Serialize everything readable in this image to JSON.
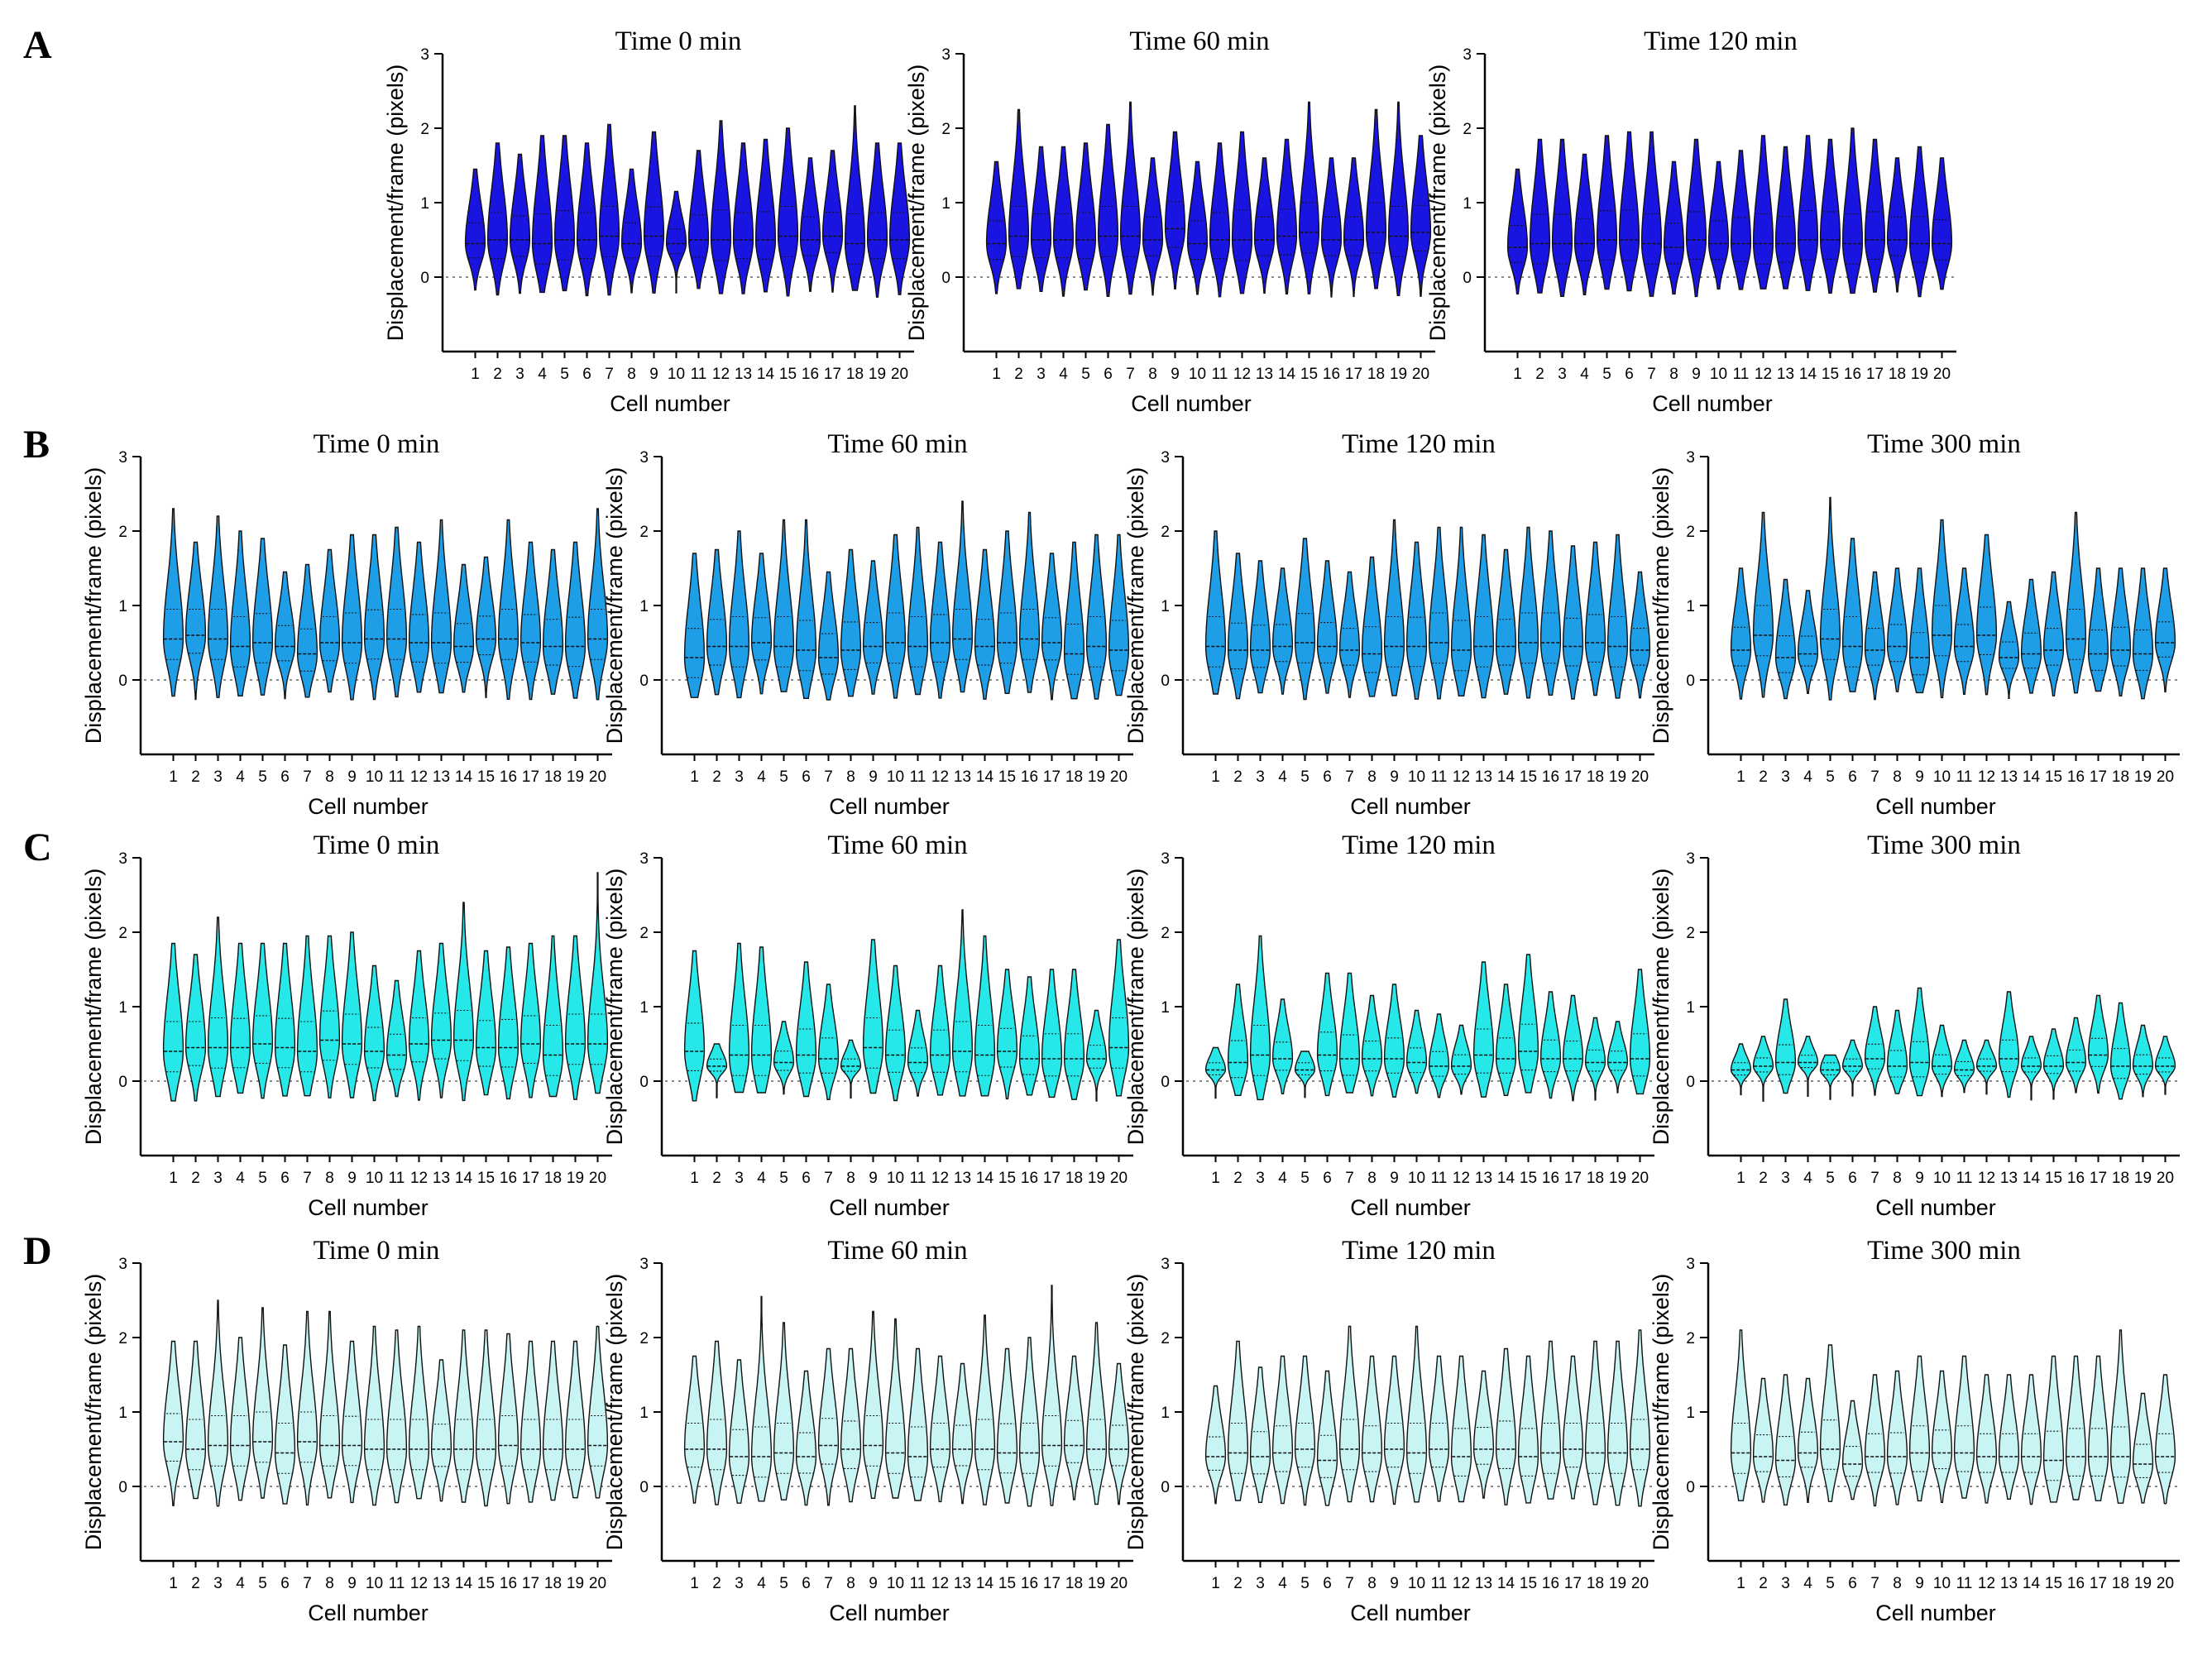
{
  "figure": {
    "rows": [
      {
        "letter": "A",
        "fill": "#1a14e0"
      },
      {
        "letter": "B",
        "fill": "#1f9ee8"
      },
      {
        "letter": "C",
        "fill": "#26e8e8"
      },
      {
        "letter": "D",
        "fill": "#c8f4f4"
      }
    ]
  },
  "chart_data": [
    {
      "id": "A1",
      "type": "violin",
      "row": "A",
      "title": "Time 0 min",
      "xlabel": "Cell number",
      "ylabel": "Displacement/frame (pixels)",
      "ylim": [
        -1,
        3
      ],
      "yticks": [
        0,
        1,
        2,
        3
      ],
      "categories": [
        "1",
        "2",
        "3",
        "4",
        "5",
        "6",
        "7",
        "8",
        "9",
        "10",
        "11",
        "12",
        "13",
        "14",
        "15",
        "16",
        "17",
        "18",
        "19",
        "20"
      ],
      "medians": [
        0.45,
        0.5,
        0.5,
        0.45,
        0.5,
        0.5,
        0.55,
        0.45,
        0.55,
        0.45,
        0.5,
        0.5,
        0.5,
        0.5,
        0.55,
        0.5,
        0.55,
        0.45,
        0.5,
        0.5
      ],
      "maxima": [
        1.45,
        1.8,
        1.65,
        1.9,
        1.9,
        1.8,
        2.05,
        1.45,
        1.95,
        1.15,
        1.7,
        2.1,
        1.8,
        1.85,
        2.0,
        1.6,
        1.7,
        2.3,
        1.8,
        1.8
      ]
    },
    {
      "id": "A2",
      "type": "violin",
      "row": "A",
      "title": "Time 60 min",
      "xlabel": "Cell number",
      "ylabel": "Displacement/frame (pixels)",
      "ylim": [
        -1,
        3
      ],
      "yticks": [
        0,
        1,
        2,
        3
      ],
      "categories": [
        "1",
        "2",
        "3",
        "4",
        "5",
        "6",
        "7",
        "8",
        "9",
        "10",
        "11",
        "12",
        "13",
        "14",
        "15",
        "16",
        "17",
        "18",
        "19",
        "20"
      ],
      "medians": [
        0.45,
        0.55,
        0.5,
        0.5,
        0.5,
        0.55,
        0.55,
        0.5,
        0.65,
        0.45,
        0.5,
        0.5,
        0.5,
        0.55,
        0.6,
        0.5,
        0.5,
        0.6,
        0.55,
        0.6
      ],
      "maxima": [
        1.55,
        2.25,
        1.75,
        1.75,
        1.8,
        2.05,
        2.35,
        1.6,
        1.95,
        1.55,
        1.8,
        1.95,
        1.6,
        1.85,
        2.35,
        1.6,
        1.6,
        2.25,
        2.35,
        1.9
      ]
    },
    {
      "id": "A3",
      "type": "violin",
      "row": "A",
      "title": "Time 120 min",
      "xlabel": "Cell number",
      "ylabel": "Displacement/frame (pixels)",
      "ylim": [
        -1,
        3
      ],
      "yticks": [
        0,
        1,
        2,
        3
      ],
      "categories": [
        "1",
        "2",
        "3",
        "4",
        "5",
        "6",
        "7",
        "8",
        "9",
        "10",
        "11",
        "12",
        "13",
        "14",
        "15",
        "16",
        "17",
        "18",
        "19",
        "20"
      ],
      "medians": [
        0.4,
        0.45,
        0.45,
        0.45,
        0.5,
        0.5,
        0.45,
        0.4,
        0.5,
        0.45,
        0.45,
        0.45,
        0.45,
        0.5,
        0.5,
        0.45,
        0.5,
        0.5,
        0.45,
        0.45
      ],
      "maxima": [
        1.45,
        1.85,
        1.85,
        1.65,
        1.9,
        1.95,
        1.95,
        1.55,
        1.85,
        1.55,
        1.7,
        1.9,
        1.75,
        1.9,
        1.85,
        2.0,
        1.85,
        1.6,
        1.75,
        1.6
      ]
    },
    {
      "id": "B1",
      "type": "violin",
      "row": "B",
      "title": "Time 0 min",
      "xlabel": "Cell number",
      "ylabel": "Displacement/frame (pixels)",
      "ylim": [
        -1,
        3
      ],
      "yticks": [
        0,
        1,
        2,
        3
      ],
      "categories": [
        "1",
        "2",
        "3",
        "4",
        "5",
        "6",
        "7",
        "8",
        "9",
        "10",
        "11",
        "12",
        "13",
        "14",
        "15",
        "16",
        "17",
        "18",
        "19",
        "20"
      ],
      "medians": [
        0.55,
        0.6,
        0.55,
        0.45,
        0.5,
        0.45,
        0.35,
        0.5,
        0.5,
        0.55,
        0.55,
        0.5,
        0.5,
        0.45,
        0.55,
        0.55,
        0.5,
        0.45,
        0.45,
        0.55
      ],
      "maxima": [
        2.3,
        1.85,
        2.2,
        2.0,
        1.9,
        1.45,
        1.55,
        1.75,
        1.95,
        1.95,
        2.05,
        1.85,
        2.15,
        1.55,
        1.65,
        2.15,
        1.85,
        1.75,
        1.85,
        2.3
      ]
    },
    {
      "id": "B2",
      "type": "violin",
      "row": "B",
      "title": "Time 60 min",
      "xlabel": "Cell number",
      "ylabel": "Displacement/frame (pixels)",
      "ylim": [
        -1,
        3
      ],
      "yticks": [
        0,
        1,
        2,
        3
      ],
      "categories": [
        "1",
        "2",
        "3",
        "4",
        "5",
        "6",
        "7",
        "8",
        "9",
        "10",
        "11",
        "12",
        "13",
        "14",
        "15",
        "16",
        "17",
        "18",
        "19",
        "20"
      ],
      "medians": [
        0.3,
        0.45,
        0.45,
        0.5,
        0.45,
        0.4,
        0.3,
        0.4,
        0.45,
        0.5,
        0.45,
        0.5,
        0.55,
        0.45,
        0.5,
        0.55,
        0.5,
        0.35,
        0.45,
        0.4
      ],
      "maxima": [
        1.7,
        1.75,
        2.0,
        1.7,
        2.15,
        2.15,
        1.45,
        1.75,
        1.6,
        1.95,
        2.05,
        1.85,
        2.4,
        1.75,
        2.0,
        2.25,
        1.7,
        1.85,
        1.95,
        1.95
      ]
    },
    {
      "id": "B3",
      "type": "violin",
      "row": "B",
      "title": "Time 120 min",
      "xlabel": "Cell number",
      "ylabel": "Displacement/frame (pixels)",
      "ylim": [
        -1,
        3
      ],
      "yticks": [
        0,
        1,
        2,
        3
      ],
      "categories": [
        "1",
        "2",
        "3",
        "4",
        "5",
        "6",
        "7",
        "8",
        "9",
        "10",
        "11",
        "12",
        "13",
        "14",
        "15",
        "16",
        "17",
        "18",
        "19",
        "20"
      ],
      "medians": [
        0.45,
        0.4,
        0.4,
        0.45,
        0.5,
        0.45,
        0.4,
        0.35,
        0.45,
        0.45,
        0.5,
        0.4,
        0.45,
        0.45,
        0.5,
        0.5,
        0.45,
        0.5,
        0.45,
        0.4
      ],
      "maxima": [
        2.0,
        1.7,
        1.6,
        1.5,
        1.9,
        1.6,
        1.45,
        1.65,
        2.15,
        1.85,
        2.05,
        2.05,
        1.95,
        1.75,
        2.05,
        2.0,
        1.8,
        1.85,
        1.95,
        1.45
      ]
    },
    {
      "id": "B4",
      "type": "violin",
      "row": "B",
      "title": "Time 300 min",
      "xlabel": "Cell number",
      "ylabel": "Displacement/frame (pixels)",
      "ylim": [
        -1,
        3
      ],
      "yticks": [
        0,
        1,
        2,
        3
      ],
      "categories": [
        "1",
        "2",
        "3",
        "4",
        "5",
        "6",
        "7",
        "8",
        "9",
        "10",
        "11",
        "12",
        "13",
        "14",
        "15",
        "16",
        "17",
        "18",
        "19",
        "20"
      ],
      "medians": [
        0.4,
        0.6,
        0.3,
        0.35,
        0.55,
        0.45,
        0.4,
        0.45,
        0.3,
        0.6,
        0.45,
        0.6,
        0.3,
        0.35,
        0.4,
        0.55,
        0.35,
        0.4,
        0.35,
        0.5
      ],
      "maxima": [
        1.5,
        2.25,
        1.35,
        1.2,
        2.45,
        1.9,
        1.45,
        1.5,
        1.5,
        2.15,
        1.5,
        1.95,
        1.05,
        1.35,
        1.45,
        2.25,
        1.5,
        1.5,
        1.5,
        1.5
      ]
    },
    {
      "id": "C1",
      "type": "violin",
      "row": "C",
      "title": "Time 0 min",
      "xlabel": "Cell number",
      "ylabel": "Displacement/frame (pixels)",
      "ylim": [
        -1,
        3
      ],
      "yticks": [
        0,
        1,
        2,
        3
      ],
      "categories": [
        "1",
        "2",
        "3",
        "4",
        "5",
        "6",
        "7",
        "8",
        "9",
        "10",
        "11",
        "12",
        "13",
        "14",
        "15",
        "16",
        "17",
        "18",
        "19",
        "20"
      ],
      "medians": [
        0.4,
        0.45,
        0.45,
        0.45,
        0.5,
        0.45,
        0.4,
        0.55,
        0.5,
        0.4,
        0.35,
        0.5,
        0.55,
        0.55,
        0.45,
        0.45,
        0.5,
        0.35,
        0.5,
        0.5
      ],
      "maxima": [
        1.85,
        1.7,
        2.2,
        1.85,
        1.85,
        1.85,
        1.95,
        1.95,
        2.0,
        1.55,
        1.35,
        1.75,
        1.85,
        2.4,
        1.75,
        1.8,
        1.85,
        1.95,
        1.95,
        2.8
      ]
    },
    {
      "id": "C2",
      "type": "violin",
      "row": "C",
      "title": "Time 60 min",
      "xlabel": "Cell number",
      "ylabel": "Displacement/frame (pixels)",
      "ylim": [
        -1,
        3
      ],
      "yticks": [
        0,
        1,
        2,
        3
      ],
      "categories": [
        "1",
        "2",
        "3",
        "4",
        "5",
        "6",
        "7",
        "8",
        "9",
        "10",
        "11",
        "12",
        "13",
        "14",
        "15",
        "16",
        "17",
        "18",
        "19",
        "20"
      ],
      "medians": [
        0.4,
        0.2,
        0.35,
        0.35,
        0.25,
        0.35,
        0.3,
        0.2,
        0.45,
        0.35,
        0.25,
        0.35,
        0.4,
        0.35,
        0.4,
        0.3,
        0.3,
        0.3,
        0.3,
        0.45
      ],
      "maxima": [
        1.75,
        0.5,
        1.85,
        1.8,
        0.8,
        1.6,
        1.3,
        0.55,
        1.9,
        1.55,
        0.95,
        1.55,
        2.3,
        1.95,
        1.5,
        1.4,
        1.5,
        1.5,
        0.95,
        1.9
      ]
    },
    {
      "id": "C3",
      "type": "violin",
      "row": "C",
      "title": "Time 120 min",
      "xlabel": "Cell number",
      "ylabel": "Displacement/frame (pixels)",
      "ylim": [
        -1,
        3
      ],
      "yticks": [
        0,
        1,
        2,
        3
      ],
      "categories": [
        "1",
        "2",
        "3",
        "4",
        "5",
        "6",
        "7",
        "8",
        "9",
        "10",
        "11",
        "12",
        "13",
        "14",
        "15",
        "16",
        "17",
        "18",
        "19",
        "20"
      ],
      "medians": [
        0.15,
        0.25,
        0.35,
        0.3,
        0.15,
        0.35,
        0.3,
        0.3,
        0.3,
        0.25,
        0.2,
        0.2,
        0.35,
        0.3,
        0.4,
        0.3,
        0.3,
        0.25,
        0.25,
        0.3
      ],
      "maxima": [
        0.45,
        1.3,
        1.95,
        1.1,
        0.4,
        1.45,
        1.45,
        1.15,
        1.3,
        0.95,
        0.9,
        0.75,
        1.6,
        1.3,
        1.7,
        1.2,
        1.15,
        0.85,
        0.8,
        1.5
      ]
    },
    {
      "id": "C4",
      "type": "violin",
      "row": "C",
      "title": "Time 300 min",
      "xlabel": "Cell number",
      "ylabel": "Displacement/frame (pixels)",
      "ylim": [
        -1,
        3
      ],
      "yticks": [
        0,
        1,
        2,
        3
      ],
      "categories": [
        "1",
        "2",
        "3",
        "4",
        "5",
        "6",
        "7",
        "8",
        "9",
        "10",
        "11",
        "12",
        "13",
        "14",
        "15",
        "16",
        "17",
        "18",
        "19",
        "20"
      ],
      "medians": [
        0.15,
        0.2,
        0.25,
        0.25,
        0.15,
        0.2,
        0.3,
        0.2,
        0.25,
        0.2,
        0.15,
        0.2,
        0.3,
        0.2,
        0.2,
        0.25,
        0.35,
        0.2,
        0.2,
        0.2
      ],
      "maxima": [
        0.5,
        0.6,
        1.1,
        0.6,
        0.35,
        0.55,
        1.0,
        0.95,
        1.25,
        0.75,
        0.55,
        0.55,
        1.2,
        0.6,
        0.7,
        0.85,
        1.15,
        1.05,
        0.75,
        0.6
      ]
    },
    {
      "id": "D1",
      "type": "violin",
      "row": "D",
      "title": "Time 0 min",
      "xlabel": "Cell number",
      "ylabel": "Displacement/frame (pixels)",
      "ylim": [
        -1,
        3
      ],
      "yticks": [
        0,
        1,
        2,
        3
      ],
      "categories": [
        "1",
        "2",
        "3",
        "4",
        "5",
        "6",
        "7",
        "8",
        "9",
        "10",
        "11",
        "12",
        "13",
        "14",
        "15",
        "16",
        "17",
        "18",
        "19",
        "20"
      ],
      "medians": [
        0.6,
        0.5,
        0.55,
        0.55,
        0.6,
        0.45,
        0.6,
        0.55,
        0.55,
        0.5,
        0.5,
        0.5,
        0.5,
        0.5,
        0.5,
        0.55,
        0.5,
        0.5,
        0.5,
        0.55
      ],
      "maxima": [
        1.95,
        1.95,
        2.5,
        2.0,
        2.4,
        1.9,
        2.35,
        2.35,
        1.95,
        2.15,
        2.1,
        2.15,
        1.7,
        2.1,
        2.1,
        2.05,
        1.95,
        1.95,
        1.95,
        2.15
      ]
    },
    {
      "id": "D2",
      "type": "violin",
      "row": "D",
      "title": "Time 60 min",
      "xlabel": "Cell number",
      "ylabel": "Displacement/frame (pixels)",
      "ylim": [
        -1,
        3
      ],
      "yticks": [
        0,
        1,
        2,
        3
      ],
      "categories": [
        "1",
        "2",
        "3",
        "4",
        "5",
        "6",
        "7",
        "8",
        "9",
        "10",
        "11",
        "12",
        "13",
        "14",
        "15",
        "16",
        "17",
        "18",
        "19",
        "20"
      ],
      "medians": [
        0.5,
        0.5,
        0.4,
        0.4,
        0.45,
        0.4,
        0.55,
        0.5,
        0.55,
        0.45,
        0.4,
        0.5,
        0.5,
        0.5,
        0.45,
        0.45,
        0.55,
        0.55,
        0.5,
        0.5
      ],
      "maxima": [
        1.75,
        1.95,
        1.7,
        2.55,
        2.2,
        1.55,
        1.85,
        1.85,
        2.35,
        2.25,
        1.85,
        1.75,
        1.65,
        2.3,
        1.85,
        2.0,
        2.7,
        1.75,
        2.2,
        1.65
      ]
    },
    {
      "id": "D3",
      "type": "violin",
      "row": "D",
      "title": "Time 120 min",
      "xlabel": "Cell number",
      "ylabel": "Displacement/frame (pixels)",
      "ylim": [
        -1,
        3
      ],
      "yticks": [
        0,
        1,
        2,
        3
      ],
      "categories": [
        "1",
        "2",
        "3",
        "4",
        "5",
        "6",
        "7",
        "8",
        "9",
        "10",
        "11",
        "12",
        "13",
        "14",
        "15",
        "16",
        "17",
        "18",
        "19",
        "20"
      ],
      "medians": [
        0.4,
        0.45,
        0.4,
        0.45,
        0.5,
        0.35,
        0.5,
        0.45,
        0.5,
        0.45,
        0.5,
        0.4,
        0.5,
        0.5,
        0.4,
        0.45,
        0.5,
        0.45,
        0.45,
        0.5
      ],
      "maxima": [
        1.35,
        1.95,
        1.6,
        1.75,
        1.75,
        1.55,
        2.15,
        1.75,
        1.75,
        2.15,
        1.75,
        1.75,
        1.55,
        1.85,
        1.75,
        1.95,
        1.75,
        1.95,
        1.95,
        2.1
      ]
    },
    {
      "id": "D4",
      "type": "violin",
      "row": "D",
      "title": "Time 300 min",
      "xlabel": "Cell number",
      "ylabel": "Displacement/frame (pixels)",
      "ylim": [
        -1,
        3
      ],
      "yticks": [
        0,
        1,
        2,
        3
      ],
      "categories": [
        "1",
        "2",
        "3",
        "4",
        "5",
        "6",
        "7",
        "8",
        "9",
        "10",
        "11",
        "12",
        "13",
        "14",
        "15",
        "16",
        "17",
        "18",
        "19",
        "20"
      ],
      "medians": [
        0.45,
        0.4,
        0.35,
        0.45,
        0.5,
        0.3,
        0.4,
        0.4,
        0.45,
        0.45,
        0.45,
        0.4,
        0.4,
        0.4,
        0.35,
        0.4,
        0.4,
        0.4,
        0.3,
        0.4
      ],
      "maxima": [
        2.1,
        1.45,
        1.5,
        1.45,
        1.9,
        1.15,
        1.5,
        1.55,
        1.75,
        1.55,
        1.75,
        1.5,
        1.5,
        1.5,
        1.75,
        1.75,
        1.75,
        2.1,
        1.25,
        1.5
      ]
    }
  ]
}
